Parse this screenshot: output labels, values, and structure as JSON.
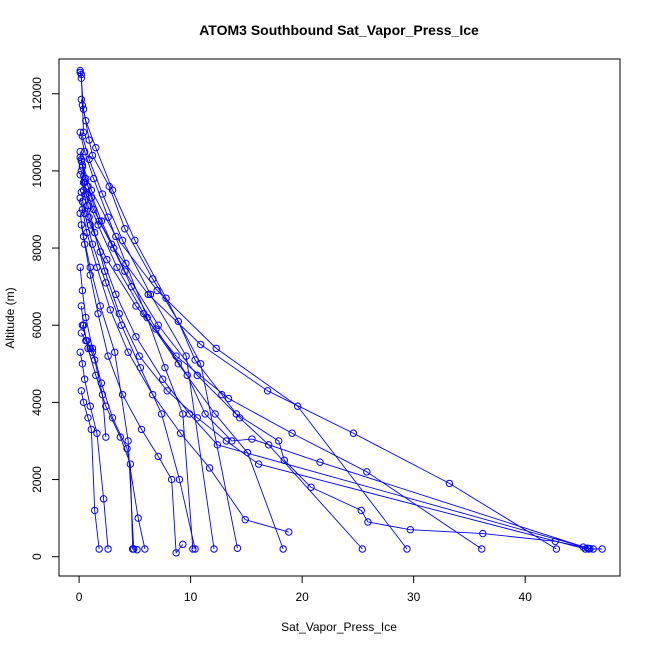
{
  "chart_data": {
    "type": "line",
    "title": "ATOM3 Southbound Sat_Vapor_Press_Ice",
    "xlabel": "Sat_Vapor_Press_Ice",
    "ylabel": "Altitude (m)",
    "xlim": [
      -1.8,
      48.5
    ],
    "ylim": [
      -500,
      12900
    ],
    "x_ticks": [
      0,
      10,
      20,
      30,
      40
    ],
    "y_ticks": [
      0,
      2000,
      4000,
      6000,
      8000,
      10000,
      12000
    ],
    "grid": false,
    "legend": "none",
    "series_color": "#0000ff",
    "marker": "open-circle",
    "series": [
      {
        "x": [
          0.1,
          0.2,
          0.4,
          0.9,
          1.2,
          2.7,
          4.1,
          6.6,
          8.9,
          10.4,
          12.8,
          14.1,
          17.9,
          18.4,
          20.8,
          25.3,
          25.9,
          29.7,
          36.2,
          42.7,
          45.2,
          45.7,
          46.1,
          46.9
        ],
        "y": [
          12550,
          12400,
          11600,
          10800,
          10400,
          9600,
          8500,
          7200,
          6100,
          5100,
          4200,
          3700,
          3000,
          2500,
          1800,
          1200,
          900,
          700,
          600,
          400,
          250,
          200,
          200,
          200
        ]
      },
      {
        "x": [
          0.2,
          0.3,
          0.6,
          1.1,
          1.8,
          2.9,
          4.7,
          6.9,
          9.7,
          11.3,
          13.7,
          15.5,
          21.6,
          45.6
        ],
        "y": [
          10300,
          10100,
          9800,
          9300,
          8700,
          8100,
          7000,
          5900,
          4700,
          3700,
          3000,
          3050,
          2450,
          220
        ]
      },
      {
        "x": [
          0.1,
          0.3,
          0.5,
          0.8,
          1.4,
          2.3,
          3.6,
          5.4,
          7.9,
          10.6,
          13.2,
          16.1,
          45.4
        ],
        "y": [
          10500,
          10150,
          9700,
          9100,
          8400,
          7400,
          6300,
          5200,
          4300,
          3600,
          3000,
          2400,
          200
        ]
      },
      {
        "x": [
          0.2,
          0.4,
          0.9,
          1.9,
          3.3,
          5.1,
          7.5,
          9.9,
          12.4,
          45.8
        ],
        "y": [
          10000,
          9500,
          8800,
          7900,
          6800,
          5700,
          4600,
          3700,
          2900,
          210
        ]
      },
      {
        "x": [
          0.1,
          0.3,
          0.7,
          1.6,
          2.8,
          4.4,
          6.6,
          9.1,
          11.7,
          14.9,
          18.8
        ],
        "y": [
          9300,
          9000,
          8400,
          7500,
          6400,
          5300,
          4200,
          3200,
          2300,
          960,
          640
        ]
      },
      {
        "x": [
          0.2,
          0.5,
          1.0,
          1.7,
          2.6,
          3.9,
          5.6,
          7.1,
          8.3,
          8.7,
          9.3
        ],
        "y": [
          8600,
          8100,
          7300,
          6300,
          5200,
          4200,
          3300,
          2600,
          2000,
          100,
          320
        ]
      },
      {
        "x": [
          0.1,
          0.3,
          0.6,
          1.2,
          2.0,
          3.0,
          4.3,
          5.3,
          5.9
        ],
        "y": [
          7500,
          6900,
          6200,
          5400,
          4500,
          3600,
          2800,
          1000,
          200
        ]
      },
      {
        "x": [
          0.2,
          0.4,
          0.8,
          1.5,
          2.4,
          3.7,
          4.6,
          4.8,
          5.2
        ],
        "y": [
          6500,
          6000,
          5400,
          4700,
          3900,
          3100,
          2400,
          200,
          180
        ]
      },
      {
        "x": [
          0.1,
          0.3,
          0.5,
          1.0,
          1.6,
          2.2,
          2.6
        ],
        "y": [
          5300,
          5000,
          4600,
          3900,
          3200,
          1500,
          200
        ]
      },
      {
        "x": [
          0.2,
          0.4,
          0.8,
          1.1,
          1.4,
          1.8
        ],
        "y": [
          4300,
          4000,
          3600,
          3300,
          1200,
          200
        ]
      },
      {
        "x": [
          0.1,
          0.5,
          1.3,
          2.6,
          4.2,
          6.1,
          7.7,
          9.3,
          10.2
        ],
        "y": [
          11000,
          10500,
          9800,
          8800,
          7600,
          6200,
          4900,
          3700,
          200
        ]
      },
      {
        "x": [
          0.2,
          0.6,
          1.5,
          3.0,
          5.0,
          7.8,
          10.9,
          14.2
        ],
        "y": [
          11850,
          11300,
          10600,
          9500,
          8200,
          6700,
          5000,
          220
        ]
      },
      {
        "x": [
          0.3,
          0.9,
          2.1,
          3.9,
          6.4,
          9.6,
          12.1
        ],
        "y": [
          10900,
          10300,
          9400,
          8200,
          6800,
          5200,
          200
        ]
      },
      {
        "x": [
          0.1,
          0.6,
          1.7,
          3.4,
          5.8,
          8.9,
          12.2,
          15.1,
          18.3
        ],
        "y": [
          9900,
          9400,
          8600,
          7500,
          6300,
          5000,
          3700,
          2700,
          200
        ]
      },
      {
        "x": [
          0.2,
          0.8,
          2.0,
          4.1,
          7.1,
          10.6,
          14.4,
          17.0,
          25.4
        ],
        "y": [
          10250,
          9600,
          8700,
          7400,
          6000,
          4700,
          3600,
          2900,
          200
        ]
      },
      {
        "x": [
          0.3,
          1.0,
          2.5,
          5.1,
          8.7,
          13.4,
          19.1,
          25.8,
          36.1
        ],
        "y": [
          9200,
          8600,
          7700,
          6500,
          5200,
          4100,
          3200,
          2200,
          200
        ]
      },
      {
        "x": [
          0.4,
          1.3,
          3.1,
          6.2,
          10.9,
          16.9,
          24.6,
          33.2,
          42.8
        ],
        "y": [
          9700,
          9000,
          8000,
          6800,
          5500,
          4300,
          3200,
          1900,
          200
        ]
      },
      {
        "x": [
          0.1,
          1.1,
          3.3,
          7.0,
          12.3,
          19.6,
          29.4
        ],
        "y": [
          10350,
          9500,
          8300,
          6900,
          5400,
          3900,
          200
        ]
      },
      {
        "x": [
          0.2,
          0.5,
          1.2,
          2.4,
          3.8,
          5.5,
          7.4,
          9.0,
          10.4
        ],
        "y": [
          9450,
          8900,
          8100,
          7100,
          6000,
          4900,
          3700,
          2000,
          200
        ]
      },
      {
        "x": [
          0.1,
          0.4,
          1.0,
          1.9,
          3.2,
          4.4,
          4.9
        ],
        "y": [
          8900,
          8300,
          7500,
          6500,
          5300,
          3000,
          200
        ]
      },
      {
        "x": [
          0.3,
          0.7,
          1.4,
          2.1,
          2.4
        ],
        "y": [
          6000,
          5600,
          5100,
          4200,
          3100
        ]
      },
      {
        "x": [
          0.2,
          0.6,
          1.0,
          1.2
        ],
        "y": [
          5800,
          5600,
          5400,
          5300
        ]
      },
      {
        "x": [
          0.1,
          0.2,
          0.3,
          0.4
        ],
        "y": [
          12600,
          12500,
          11700,
          11000
        ]
      }
    ]
  }
}
